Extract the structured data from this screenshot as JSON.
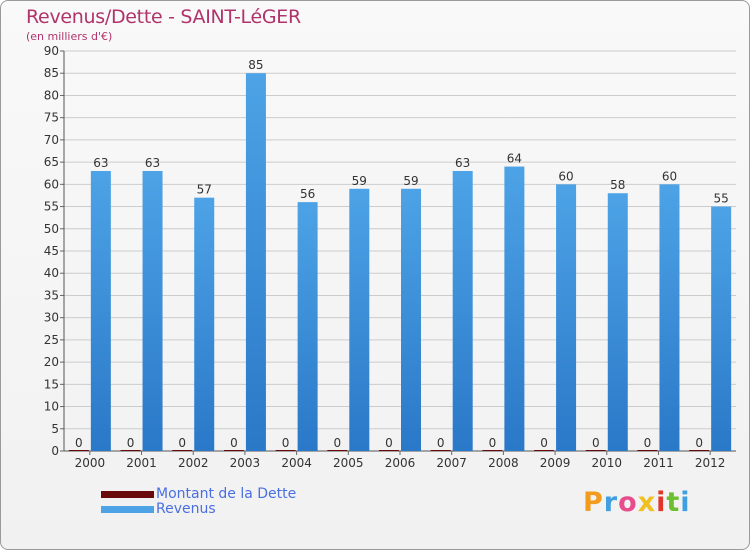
{
  "title": "Revenus/Dette - SAINT-LéGER",
  "subtitle": "(en milliers d'€)",
  "colors": {
    "title": "#b0336b",
    "debt": "#6b0a0a",
    "revenue": "#4da3e6",
    "revenue_dark": "#2a78c8",
    "legend_text": "#4a6fe0",
    "grid": "#cccccc"
  },
  "legend": {
    "debt_label": "Montant de la Dette",
    "revenue_label": "Revenus"
  },
  "logo": {
    "letters": [
      "P",
      "r",
      "o",
      "x",
      "i",
      "t",
      "i"
    ],
    "colors": [
      "#f39b1d",
      "#3f9fe0",
      "#e74c8c",
      "#f0c020",
      "#e2352b",
      "#6cbf2f",
      "#3f9fe0"
    ]
  },
  "chart_data": {
    "type": "bar",
    "title": "Revenus/Dette - SAINT-LéGER",
    "ylabel": "(en milliers d'€)",
    "xlabel": "",
    "ylim": [
      0,
      90
    ],
    "ytick_step": 5,
    "yticks": [
      "0",
      "5",
      "10",
      "15",
      "20",
      "25",
      "30",
      "35",
      "40",
      "45",
      "50",
      "55",
      "60",
      "65",
      "70",
      "75",
      "80",
      "85",
      "90"
    ],
    "grid": "horizontal",
    "categories": [
      "2000",
      "2001",
      "2002",
      "2003",
      "2004",
      "2005",
      "2006",
      "2007",
      "2008",
      "2009",
      "2010",
      "2011",
      "2012"
    ],
    "series": [
      {
        "name": "Montant de la Dette",
        "values": [
          0,
          0,
          0,
          0,
          0,
          0,
          0,
          0,
          0,
          0,
          0,
          0,
          0
        ]
      },
      {
        "name": "Revenus",
        "values": [
          63,
          63,
          57,
          85,
          56,
          59,
          59,
          63,
          64,
          60,
          58,
          60,
          55
        ]
      }
    ]
  }
}
